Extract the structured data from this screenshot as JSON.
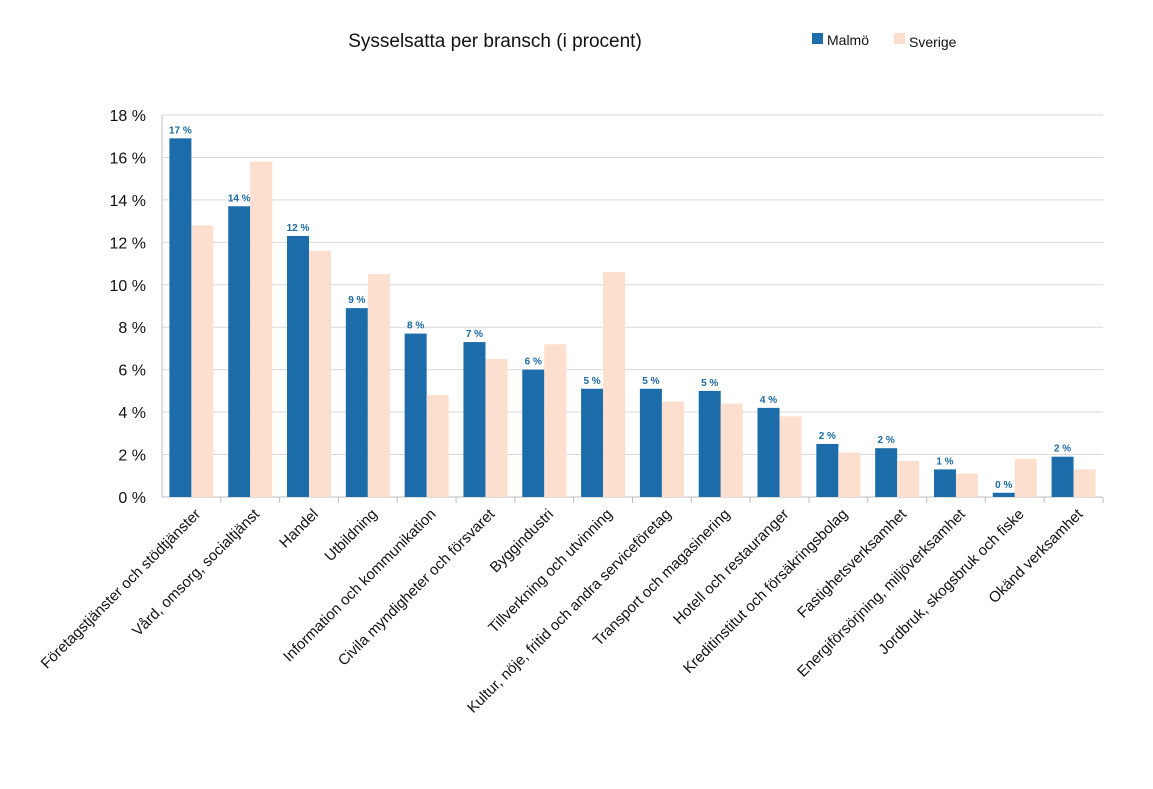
{
  "chart_data": {
    "type": "bar",
    "title": "Sysselsatta per bransch (i procent)",
    "xlabel": "",
    "ylabel": "",
    "ylim": [
      0,
      18
    ],
    "yticks": [
      0,
      2,
      4,
      6,
      8,
      10,
      12,
      14,
      16,
      18
    ],
    "ytick_labels": [
      "0 %",
      "2 %",
      "4 %",
      "6 %",
      "8 %",
      "10 %",
      "12 %",
      "14 %",
      "16 %",
      "18 %"
    ],
    "grid": true,
    "legend_position": "top-right",
    "colors": {
      "Malmö": "#1b6ca8",
      "Sverige": "#fddfcf"
    },
    "categories": [
      "Företagstjänster och stödtjänster",
      "Vård, omsorg, socialtjänst",
      "Handel",
      "Utbildning",
      "Information och kommunikation",
      "Civila myndigheter och försvaret",
      "Byggindustri",
      "Tillverkning och utvinning",
      "Kultur, nöje, fritid och andra serviceföretag",
      "Transport och magasinering",
      "Hotell och restauranger",
      "Kreditinstitut och försäkringsbolag",
      "Fastighetsverksamhet",
      "Energiförsörjning, miljöverksamhet",
      "Jordbruk, skogsbruk och fiske",
      "Okänd verksamhet"
    ],
    "series": [
      {
        "name": "Malmö",
        "values": [
          16.9,
          13.7,
          12.3,
          8.9,
          7.7,
          7.3,
          6.0,
          5.1,
          5.1,
          5.0,
          4.2,
          2.5,
          2.3,
          1.3,
          0.2,
          1.9
        ],
        "data_labels": [
          "17 %",
          "14 %",
          "12 %",
          "9 %",
          "8 %",
          "7 %",
          "6 %",
          "5 %",
          "5 %",
          "5 %",
          "4 %",
          "2 %",
          "2 %",
          "1 %",
          "0 %",
          "2 %"
        ]
      },
      {
        "name": "Sverige",
        "values": [
          12.8,
          15.8,
          11.6,
          10.5,
          4.8,
          6.5,
          7.2,
          10.6,
          4.5,
          4.4,
          3.8,
          2.1,
          1.7,
          1.1,
          1.8,
          1.3
        ]
      }
    ]
  }
}
